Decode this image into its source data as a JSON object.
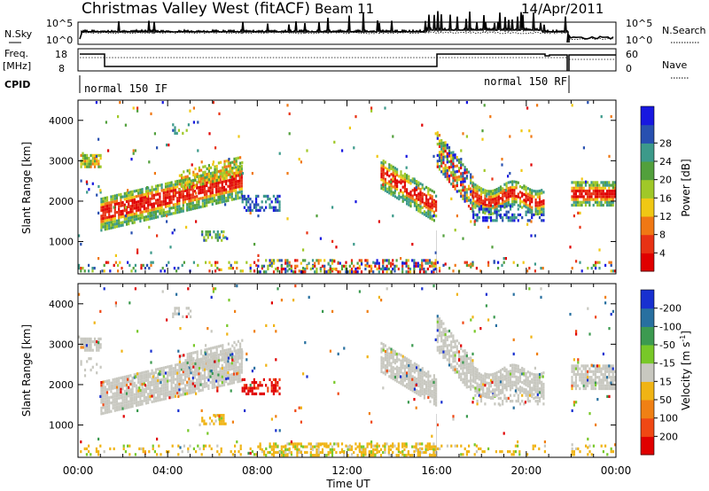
{
  "header": {
    "station": "Christmas Valley West (fitACF)",
    "beam": "Beam 11",
    "date": "14/Apr/2011"
  },
  "sky_panel": {
    "left_label": "N.Sky",
    "right_label": "N.Search",
    "left_ticks": [
      "10^5",
      "10^0"
    ],
    "right_ticks": [
      "10^5",
      "10^0"
    ]
  },
  "freq_panel": {
    "left_label": "Freq.",
    "left_unit": "[MHz]",
    "right_label": "Nave",
    "left_ticks": [
      "18",
      "8"
    ],
    "right_ticks": [
      "60",
      "0"
    ]
  },
  "cpid_panel": {
    "label": "CPID",
    "mode_1": "normal 150 IF",
    "mode_2": "normal 150 RF"
  },
  "x_axis": {
    "label": "Time UT",
    "ticks": [
      "00:00",
      "04:00",
      "08:00",
      "12:00",
      "16:00",
      "20:00",
      "00:00"
    ]
  },
  "chart_data": [
    {
      "type": "heatmap",
      "name": "power",
      "ylabel": "Slant Range [km]",
      "ylim": [
        200,
        4500
      ],
      "xlim_hours": [
        0,
        24
      ],
      "yticks": [
        "1000",
        "2000",
        "3000",
        "4000"
      ],
      "colorbar": {
        "label": "Power [dB]",
        "ticks": [
          "4",
          "8",
          "12",
          "16",
          "20",
          "24",
          "28"
        ],
        "colors": [
          "#1818e0",
          "#2850b0",
          "#3c9a8a",
          "#52a03c",
          "#a0c828",
          "#f0c814",
          "#f07814",
          "#e83214",
          "#e00000"
        ]
      }
    },
    {
      "type": "heatmap",
      "name": "velocity",
      "ylabel": "Slant Range [km]",
      "ylim": [
        200,
        4500
      ],
      "xlim_hours": [
        0,
        24
      ],
      "yticks": [
        "1000",
        "2000",
        "3000",
        "4000"
      ],
      "colorbar": {
        "label": "Velocity [m s",
        "label_sup": "-1",
        "label_end": "]",
        "ticks": [
          "200",
          "100",
          "50",
          "15",
          "-15",
          "-50",
          "-100",
          "-200"
        ],
        "colors": [
          "#1830d0",
          "#2870a0",
          "#3c9a50",
          "#78c828",
          "#c8c8c0",
          "#f0b414",
          "#f08014",
          "#f04814",
          "#e00000"
        ]
      }
    }
  ]
}
